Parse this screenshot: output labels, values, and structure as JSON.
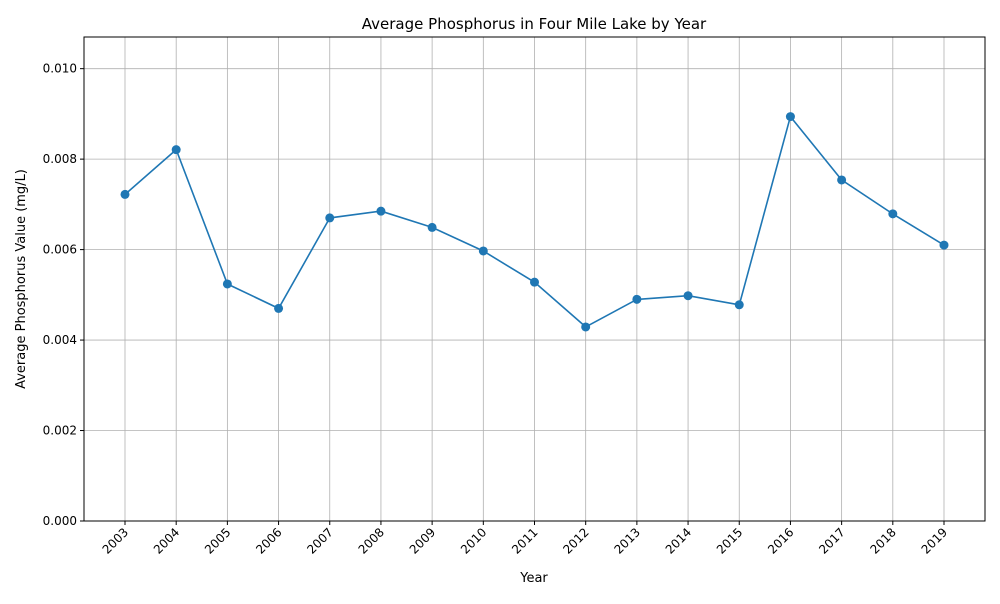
{
  "chart_data": {
    "type": "line",
    "title": "Average Phosphorus in Four Mile Lake by Year",
    "xlabel": "Year",
    "ylabel": "Average Phosphorus Value (mg/L)",
    "categories": [
      "2003",
      "2004",
      "2005",
      "2006",
      "2007",
      "2008",
      "2009",
      "2010",
      "2011",
      "2012",
      "2013",
      "2014",
      "2015",
      "2016",
      "2017",
      "2018",
      "2019"
    ],
    "series": [
      {
        "values": [
          0.00722,
          0.00821,
          0.00524,
          0.0047,
          0.0067,
          0.00685,
          0.00649,
          0.00597,
          0.00528,
          0.00429,
          0.0049,
          0.00498,
          0.00478,
          0.00894,
          0.00754,
          0.00679,
          0.0061
        ]
      }
    ],
    "ylim": [
      0,
      0.0107
    ],
    "yticks": [
      "0.000",
      "0.002",
      "0.004",
      "0.006",
      "0.008",
      "0.010"
    ],
    "grid": true,
    "line_color": "#1f77b4"
  }
}
